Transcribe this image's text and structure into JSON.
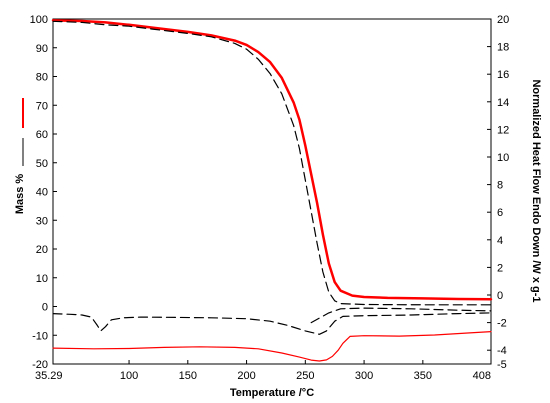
{
  "chart_data": {
    "type": "line",
    "xlabel": "Temperature /°C",
    "ylabel_left": "Mass %",
    "ylabel_right": "Normalized Heat Flow Endo Down /W x g-1",
    "xlim": [
      35.29,
      408
    ],
    "ylim_left": [
      -20,
      100
    ],
    "ylim_right": [
      -5,
      20
    ],
    "x_ticks": [
      {
        "value": 35.29,
        "label": "35.29"
      },
      {
        "value": 100,
        "label": "100"
      },
      {
        "value": 150,
        "label": "150"
      },
      {
        "value": 200,
        "label": "200"
      },
      {
        "value": 250,
        "label": "250"
      },
      {
        "value": 300,
        "label": "300"
      },
      {
        "value": 350,
        "label": "350"
      },
      {
        "value": 408,
        "label": "408"
      }
    ],
    "y_left_ticks": [
      {
        "value": 100,
        "label": "100"
      },
      {
        "value": 90,
        "label": "90"
      },
      {
        "value": 80,
        "label": "80"
      },
      {
        "value": 70,
        "label": "70"
      },
      {
        "value": 60,
        "label": "60"
      },
      {
        "value": 50,
        "label": "50"
      },
      {
        "value": 40,
        "label": "40"
      },
      {
        "value": 30,
        "label": "30"
      },
      {
        "value": 20,
        "label": "20"
      },
      {
        "value": 10,
        "label": "10"
      },
      {
        "value": 0,
        "label": "0"
      },
      {
        "value": -10,
        "label": "-10"
      },
      {
        "value": -20,
        "label": "-20"
      }
    ],
    "y_right_ticks": [
      {
        "value": 20,
        "label": "20"
      },
      {
        "value": 18,
        "label": "18"
      },
      {
        "value": 16,
        "label": "16"
      },
      {
        "value": 14,
        "label": "14"
      },
      {
        "value": 12,
        "label": "12"
      },
      {
        "value": 10,
        "label": "10"
      },
      {
        "value": 8,
        "label": "8"
      },
      {
        "value": 6,
        "label": "6"
      },
      {
        "value": 4,
        "label": "4"
      },
      {
        "value": 2,
        "label": "2"
      },
      {
        "value": 0,
        "label": "0"
      },
      {
        "value": -2,
        "label": "-2"
      },
      {
        "value": -4,
        "label": "-4"
      },
      {
        "value": -5,
        "label": "-5"
      }
    ],
    "grid": false,
    "series": [
      {
        "axis": "left",
        "color": "#ff0000",
        "dash": "solid",
        "width": 2.5,
        "points": [
          [
            35.29,
            99.5
          ],
          [
            60,
            99.3
          ],
          [
            80,
            98.8
          ],
          [
            100,
            98.0
          ],
          [
            120,
            97.0
          ],
          [
            150,
            95.5
          ],
          [
            170,
            94.3
          ],
          [
            190,
            92.5
          ],
          [
            200,
            91.0
          ],
          [
            210,
            88.5
          ],
          [
            220,
            85.0
          ],
          [
            230,
            79.5
          ],
          [
            240,
            71.0
          ],
          [
            245,
            65.0
          ],
          [
            250,
            56.0
          ],
          [
            255,
            46.0
          ],
          [
            260,
            36.0
          ],
          [
            265,
            25.0
          ],
          [
            270,
            15.0
          ],
          [
            275,
            8.5
          ],
          [
            280,
            5.5
          ],
          [
            290,
            3.8
          ],
          [
            300,
            3.3
          ],
          [
            320,
            3.0
          ],
          [
            350,
            2.8
          ],
          [
            380,
            2.6
          ],
          [
            408,
            2.5
          ]
        ]
      },
      {
        "axis": "left",
        "color": "#000000",
        "dash": "dashed",
        "width": 1.2,
        "points": [
          [
            35.29,
            99.2
          ],
          [
            60,
            98.8
          ],
          [
            80,
            98.0
          ],
          [
            100,
            97.5
          ],
          [
            120,
            96.5
          ],
          [
            150,
            95.0
          ],
          [
            170,
            93.8
          ],
          [
            190,
            91.5
          ],
          [
            200,
            89.5
          ],
          [
            210,
            86.0
          ],
          [
            220,
            81.0
          ],
          [
            230,
            74.0
          ],
          [
            240,
            63.0
          ],
          [
            245,
            55.0
          ],
          [
            250,
            44.0
          ],
          [
            255,
            33.0
          ],
          [
            260,
            22.0
          ],
          [
            265,
            12.0
          ],
          [
            270,
            5.0
          ],
          [
            275,
            2.0
          ],
          [
            280,
            1.0
          ],
          [
            300,
            0.7
          ],
          [
            350,
            0.6
          ],
          [
            408,
            0.6
          ]
        ]
      },
      {
        "axis": "right",
        "color": "#000000",
        "dash": "dashed",
        "width": 1.2,
        "points": [
          [
            35.29,
            -1.35
          ],
          [
            50,
            -1.4
          ],
          [
            60,
            -1.45
          ],
          [
            68,
            -1.6
          ],
          [
            73,
            -2.2
          ],
          [
            76,
            -2.6
          ],
          [
            80,
            -2.3
          ],
          [
            85,
            -1.8
          ],
          [
            95,
            -1.65
          ],
          [
            110,
            -1.6
          ],
          [
            140,
            -1.62
          ],
          [
            170,
            -1.65
          ],
          [
            200,
            -1.72
          ],
          [
            220,
            -1.9
          ],
          [
            235,
            -2.2
          ],
          [
            250,
            -2.6
          ],
          [
            262,
            -2.85
          ],
          [
            268,
            -2.6
          ],
          [
            275,
            -1.9
          ],
          [
            282,
            -1.55
          ],
          [
            300,
            -1.5
          ],
          [
            340,
            -1.45
          ],
          [
            380,
            -1.35
          ],
          [
            408,
            -1.3
          ]
        ]
      },
      {
        "axis": "right",
        "color": "#000000",
        "dash": "dashed",
        "width": 1.2,
        "points": [
          [
            255,
            -2.0
          ],
          [
            270,
            -1.3
          ],
          [
            280,
            -1.0
          ],
          [
            300,
            -0.95
          ],
          [
            340,
            -1.0
          ],
          [
            380,
            -1.1
          ],
          [
            408,
            -1.15
          ]
        ]
      },
      {
        "axis": "right",
        "color": "#ff0000",
        "dash": "solid",
        "width": 1.2,
        "points": [
          [
            35.29,
            -3.85
          ],
          [
            70,
            -3.9
          ],
          [
            100,
            -3.88
          ],
          [
            130,
            -3.8
          ],
          [
            160,
            -3.75
          ],
          [
            190,
            -3.8
          ],
          [
            210,
            -3.9
          ],
          [
            230,
            -4.2
          ],
          [
            245,
            -4.5
          ],
          [
            255,
            -4.72
          ],
          [
            262,
            -4.78
          ],
          [
            268,
            -4.7
          ],
          [
            273,
            -4.45
          ],
          [
            278,
            -4.0
          ],
          [
            282,
            -3.5
          ],
          [
            288,
            -3.0
          ],
          [
            300,
            -2.95
          ],
          [
            330,
            -2.98
          ],
          [
            360,
            -2.9
          ],
          [
            390,
            -2.75
          ],
          [
            408,
            -2.65
          ]
        ]
      }
    ]
  },
  "legend_swatches": [
    {
      "color": "#ff0000",
      "dash": "solid"
    },
    {
      "color": "#000000",
      "dash": "solid"
    }
  ]
}
